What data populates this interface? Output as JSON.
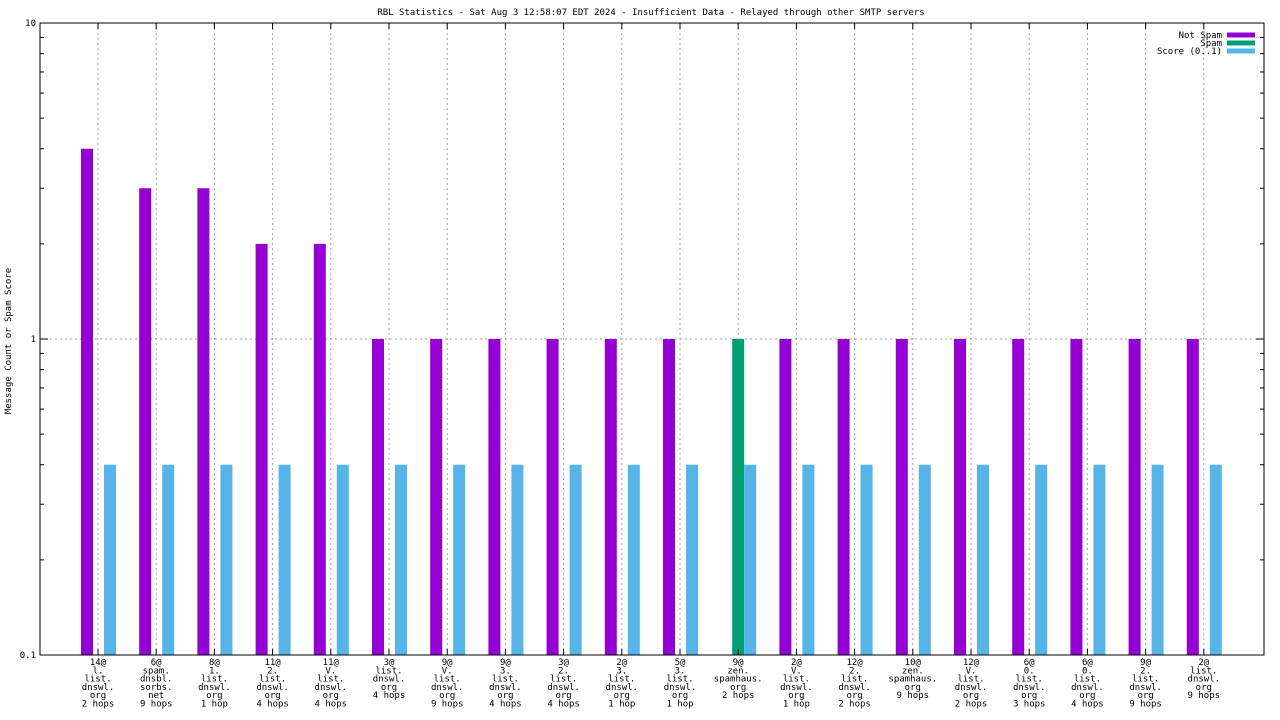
{
  "chart_data": {
    "type": "bar",
    "title": "RBL Statistics - Sat Aug  3 12:58:07 EDT 2024 - Insufficient Data - Relayed through other SMTP servers",
    "ylabel": "Message Count or Spam Score",
    "xlabel": "",
    "yscale": "log",
    "ylim": [
      0.1,
      10
    ],
    "yticks": [
      {
        "value": 0.1,
        "label": "0.1"
      },
      {
        "value": 1,
        "label": "1"
      },
      {
        "value": 10,
        "label": "10"
      }
    ],
    "grid": true,
    "legend_position": "top-right",
    "categories": [
      [
        "14@",
        "l.",
        "list.",
        "dnswl.",
        "org",
        "2 hops"
      ],
      [
        "6@",
        "spam.",
        "dnsbl.",
        "sorbs.",
        "net",
        "9 hops"
      ],
      [
        "8@",
        "1.",
        "list.",
        "dnswl.",
        "org",
        "1 hop"
      ],
      [
        "11@",
        "2.",
        "list.",
        "dnswl.",
        "org",
        "4 hops"
      ],
      [
        "11@",
        "V.",
        "list.",
        "dnswl.",
        "org",
        "4 hops"
      ],
      [
        "3@",
        "list.",
        "dnswl.",
        "org",
        "4 hops"
      ],
      [
        "9@",
        "V.",
        "list.",
        "dnswl.",
        "org",
        "9 hops"
      ],
      [
        "9@",
        "3.",
        "list.",
        "dnswl.",
        "org",
        "4 hops"
      ],
      [
        "3@",
        "2.",
        "list.",
        "dnswl.",
        "org",
        "4 hops"
      ],
      [
        "2@",
        "3.",
        "list.",
        "dnswl.",
        "org",
        "1 hop"
      ],
      [
        "5@",
        "3.",
        "list.",
        "dnswl.",
        "org",
        "1 hop"
      ],
      [
        "9@",
        "zen.",
        "spamhaus.",
        "org",
        "2 hops"
      ],
      [
        "2@",
        "V.",
        "list.",
        "dnswl.",
        "org",
        "1 hop"
      ],
      [
        "12@",
        "2.",
        "list.",
        "dnswl.",
        "org",
        "2 hops"
      ],
      [
        "10@",
        "zen.",
        "spamhaus.",
        "org",
        "9 hops"
      ],
      [
        "12@",
        "V.",
        "list.",
        "dnswl.",
        "org",
        "2 hops"
      ],
      [
        "6@",
        "0.",
        "list.",
        "dnswl.",
        "org",
        "3 hops"
      ],
      [
        "6@",
        "0.",
        "list.",
        "dnswl.",
        "org",
        "4 hops"
      ],
      [
        "9@",
        "2.",
        "list.",
        "dnswl.",
        "org",
        "9 hops"
      ],
      [
        "2@",
        "list.",
        "dnswl.",
        "org",
        "9 hops"
      ]
    ],
    "series": [
      {
        "name": "Not Spam",
        "color": "#9400d3",
        "values": [
          4,
          3,
          3,
          2,
          2,
          1,
          1,
          1,
          1,
          1,
          1,
          null,
          1,
          1,
          1,
          1,
          1,
          1,
          1,
          1
        ]
      },
      {
        "name": "Spam",
        "color": "#009e73",
        "values": [
          null,
          null,
          null,
          null,
          null,
          null,
          null,
          null,
          null,
          null,
          null,
          1,
          null,
          null,
          null,
          null,
          null,
          null,
          null,
          null
        ]
      },
      {
        "name": "Score (0..1)",
        "color": "#56b4e9",
        "values": [
          0.4,
          0.4,
          0.4,
          0.4,
          0.4,
          0.4,
          0.4,
          0.4,
          0.4,
          0.4,
          0.4,
          0.4,
          0.4,
          0.4,
          0.4,
          0.4,
          0.4,
          0.4,
          0.4,
          0.4
        ]
      }
    ]
  }
}
